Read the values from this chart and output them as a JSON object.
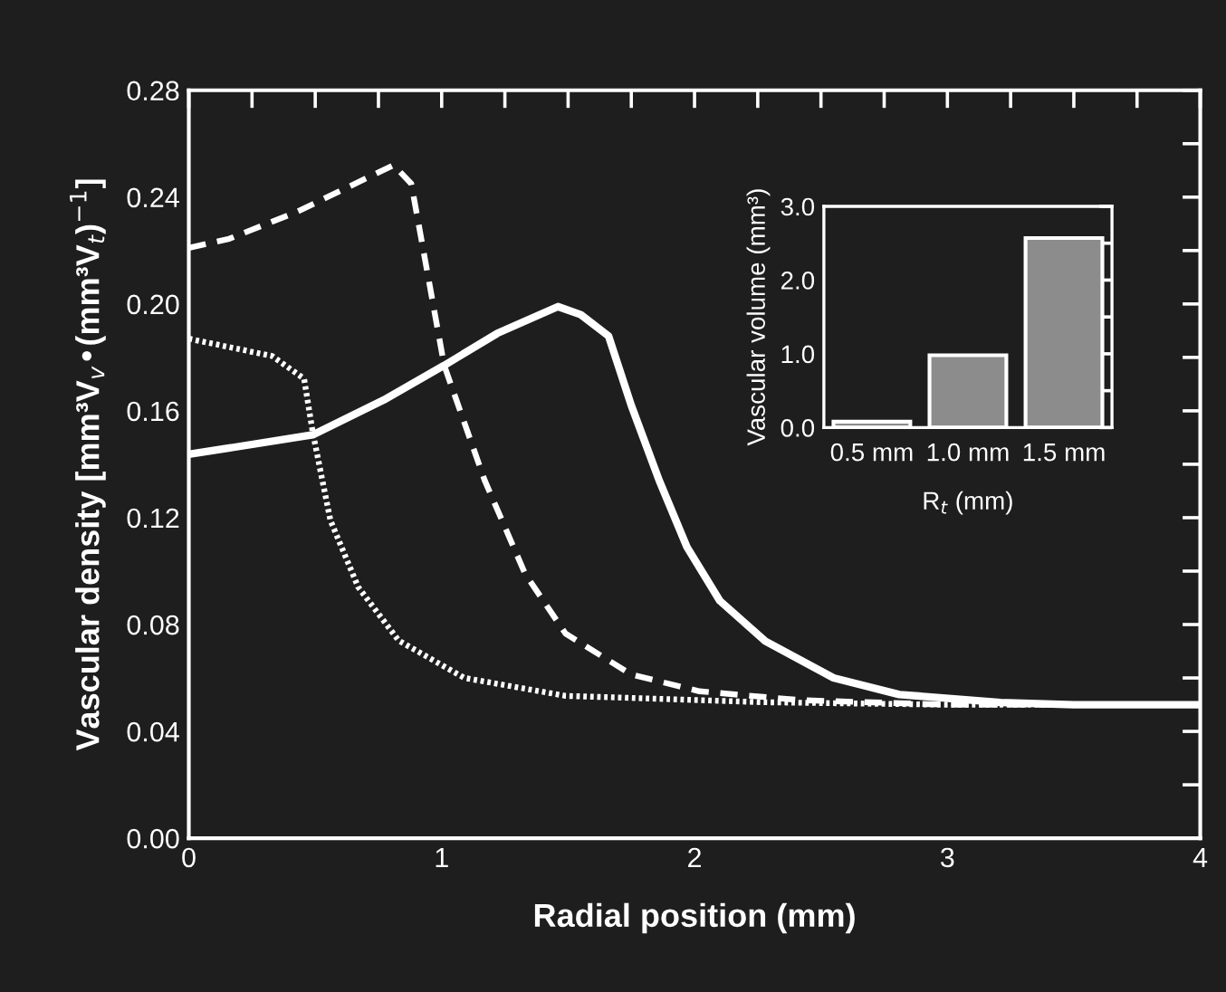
{
  "chart_data": [
    {
      "type": "line",
      "xlabel": "Radial position (mm)",
      "ylabel": "Vascular density [mm³V$_{v}$•(mm³V$_{t}$)$^{−1}$]",
      "xlim": [
        0,
        4
      ],
      "xticks": [
        0,
        {
          "value": 0.25,
          "label": null
        },
        {
          "value": 0.5,
          "label": null
        },
        {
          "value": 0.75,
          "label": null
        },
        1,
        {
          "value": 1.25,
          "label": null
        },
        {
          "value": 1.5,
          "label": null
        },
        {
          "value": 1.75,
          "label": null
        },
        2,
        {
          "value": 2.25,
          "label": null
        },
        {
          "value": 2.5,
          "label": null
        },
        {
          "value": 2.75,
          "label": null
        },
        3,
        {
          "value": 3.25,
          "label": null
        },
        {
          "value": 3.5,
          "label": null
        },
        {
          "value": 3.75,
          "label": null
        },
        4
      ],
      "ylim": [
        0,
        0.28
      ],
      "yticks": [
        {
          "value": 0,
          "label": "0.00"
        },
        {
          "value": 0.02,
          "label": null
        },
        0.04,
        {
          "value": 0.06,
          "label": null
        },
        0.08,
        {
          "value": 0.1,
          "label": null
        },
        0.12,
        {
          "value": 0.14,
          "label": null
        },
        0.16,
        {
          "value": 0.18,
          "label": null
        },
        {
          "value": 0.2,
          "label": "0.20"
        },
        {
          "value": 0.22,
          "label": null
        },
        0.24,
        {
          "value": 0.26,
          "label": null
        },
        0.28
      ],
      "grid": false,
      "legend": false,
      "series": [
        {
          "color": "#ffffff",
          "line_style": "solid",
          "x": [
            0,
            0.49,
            0.77,
            1.01,
            1.22,
            1.46,
            1.55,
            1.66,
            1.75,
            1.86,
            1.97,
            2.1,
            2.28,
            2.55,
            2.81,
            3.21,
            3.5,
            4
          ],
          "values": [
            0.1437,
            0.151,
            0.164,
            0.177,
            0.189,
            0.199,
            0.196,
            0.188,
            0.162,
            0.134,
            0.109,
            0.0889,
            0.0738,
            0.06,
            0.0538,
            0.0508,
            0.05,
            0.05
          ]
        },
        {
          "color": "#ffffff",
          "line_style": "dashed",
          "x": [
            0,
            0.16,
            0.43,
            0.81,
            0.88,
            1.01,
            1.17,
            1.33,
            1.49,
            1.75,
            2.02,
            2.42,
            3.0,
            4
          ],
          "values": [
            0.221,
            0.2244,
            0.2346,
            0.252,
            0.245,
            0.177,
            0.134,
            0.099,
            0.0766,
            0.0613,
            0.055,
            0.0517,
            0.05,
            0.05
          ]
        },
        {
          "color": "#ffffff",
          "line_style": "dotted",
          "x": [
            0,
            0.33,
            0.456,
            0.49,
            0.56,
            0.67,
            0.83,
            1.09,
            1.49,
            2.28,
            3.0,
            4
          ],
          "values": [
            0.187,
            0.1805,
            0.172,
            0.152,
            0.119,
            0.094,
            0.074,
            0.06,
            0.0533,
            0.0509,
            0.05,
            0.05
          ]
        }
      ]
    },
    {
      "type": "bar",
      "xlabel": "R$_{t}$ (mm)",
      "ylabel": "Vascular volume (mm³)",
      "categories": [
        "0.5 mm",
        "1.0 mm",
        "1.5 mm"
      ],
      "values": [
        0.08,
        0.98,
        2.57
      ],
      "color": "#8c8c8c",
      "ylim": [
        0,
        3
      ],
      "yticks": [
        {
          "value": 0,
          "label": "0.0"
        },
        {
          "value": 0.5,
          "label": null
        },
        {
          "value": 1,
          "label": "1.0"
        },
        {
          "value": 1.5,
          "label": null
        },
        {
          "value": 2,
          "label": "2.0"
        },
        {
          "value": 2.5,
          "label": null
        },
        {
          "value": 3,
          "label": "3.0"
        }
      ],
      "grid": false
    }
  ]
}
